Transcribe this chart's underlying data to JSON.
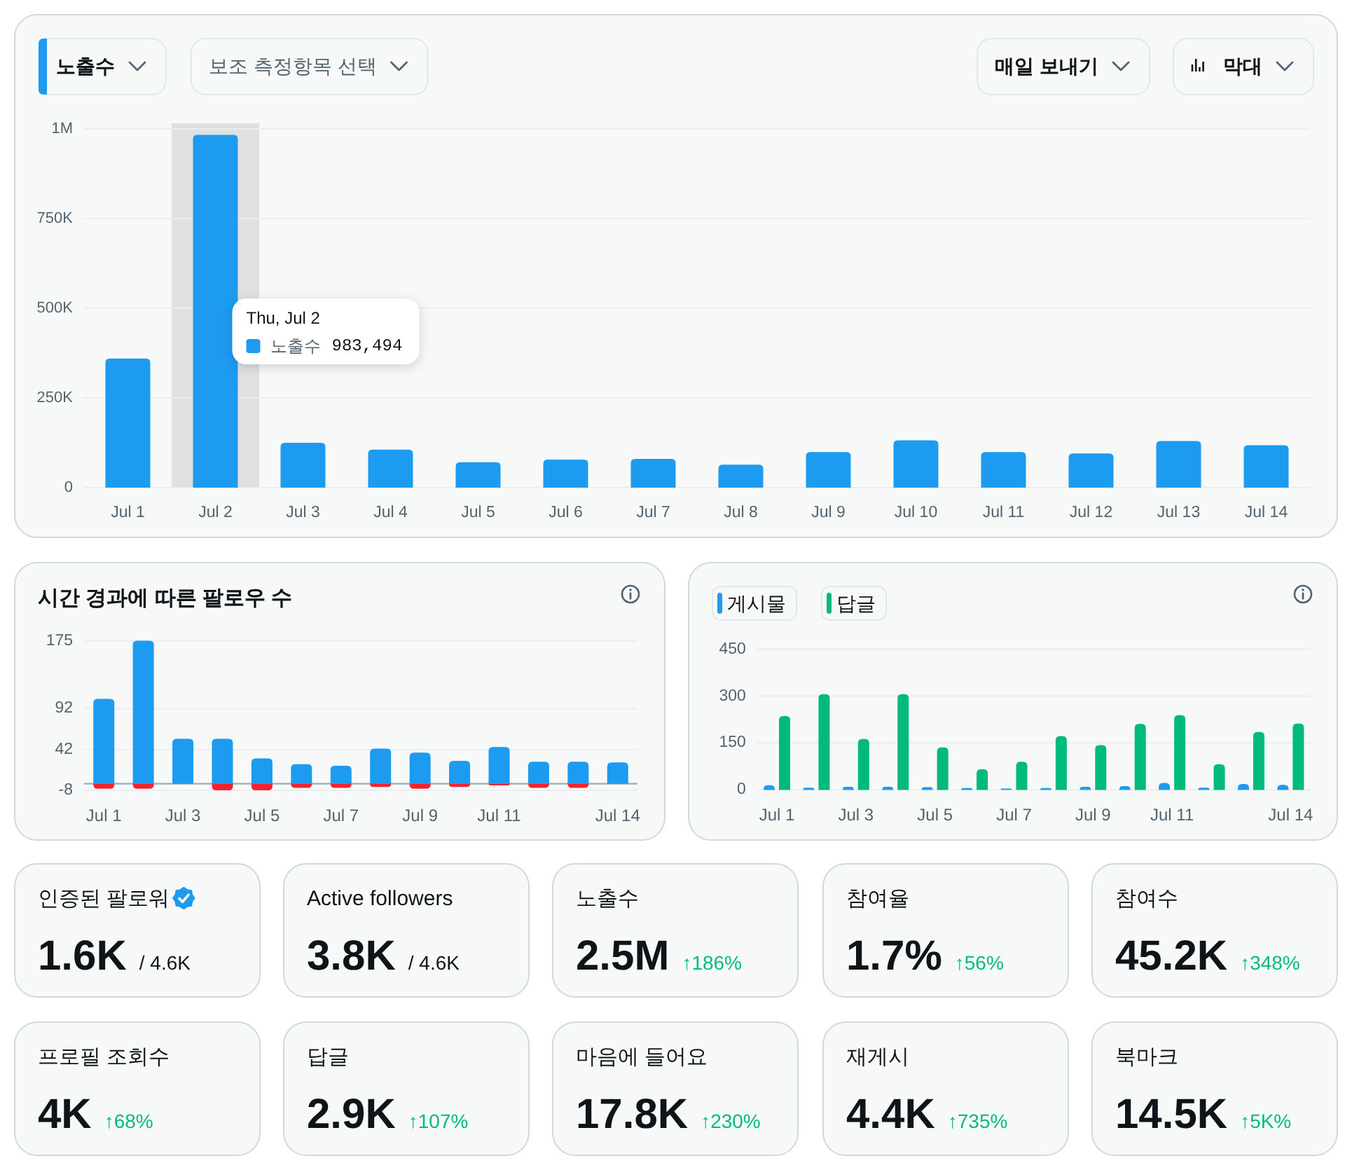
{
  "chart_data": [
    {
      "type": "bar",
      "title": "노출수",
      "categories": [
        "Jul 1",
        "Jul 2",
        "Jul 3",
        "Jul 4",
        "Jul 5",
        "Jul 6",
        "Jul 7",
        "Jul 8",
        "Jul 9",
        "Jul 10",
        "Jul 11",
        "Jul 12",
        "Jul 13",
        "Jul 14"
      ],
      "series": [
        {
          "name": "노출수",
          "color": "#1d9bf0",
          "values": [
            360000,
            983494,
            125000,
            106000,
            71000,
            78000,
            80000,
            64000,
            99000,
            132000,
            99000,
            95000,
            130000,
            118000
          ]
        }
      ],
      "ylim": [
        0,
        1000000
      ],
      "yticks": [
        0,
        {
          "value": 250000,
          "label": "250K"
        },
        {
          "value": 500000,
          "label": "500K"
        },
        {
          "value": 750000,
          "label": "750K"
        },
        {
          "value": 1000000,
          "label": "1M"
        }
      ],
      "grid": "y",
      "bands": [
        {
          "axis": "x",
          "from": "Jul 2",
          "to": "Jul 2",
          "color": "#dfe0e2"
        }
      ],
      "annotations": [
        "보조 측정항목 선택",
        "매일 보내기",
        "막대",
        "Thu, Jul 2",
        "983,494"
      ]
    },
    {
      "type": "bar",
      "title": "시간 경과에 따른 팔로우 수",
      "categories": [
        "Jul 1",
        null,
        "Jul 3",
        null,
        "Jul 5",
        null,
        "Jul 7",
        null,
        "Jul 9",
        null,
        "Jul 11",
        null,
        null,
        "Jul 14"
      ],
      "stacked": true,
      "series": [
        {
          "color": "#1d9bf0",
          "values": [
            104,
            175,
            55,
            55,
            31,
            24,
            22,
            43,
            38,
            28,
            45,
            27,
            27,
            26
          ]
        },
        {
          "color": "#f4212e",
          "values": [
            -6,
            -6,
            0,
            -8,
            -8,
            -5,
            -5,
            -4,
            -6,
            -4,
            -2,
            -5,
            -5,
            0
          ]
        }
      ],
      "ylim": [
        -8,
        175
      ],
      "yticks": [
        -8,
        42,
        92,
        175
      ],
      "grid": "y"
    },
    {
      "type": "bar",
      "categories": [
        "Jul 1",
        null,
        "Jul 3",
        null,
        "Jul 5",
        null,
        "Jul 7",
        null,
        "Jul 9",
        null,
        "Jul 11",
        null,
        null,
        "Jul 14"
      ],
      "series": [
        {
          "name": "게시물",
          "color": "#1d9bf0",
          "values": [
            15,
            7,
            10,
            10,
            9,
            6,
            4,
            6,
            10,
            12,
            22,
            7,
            19,
            16
          ]
        },
        {
          "name": "답글",
          "color": "#00ba7c",
          "values": [
            236,
            306,
            163,
            306,
            136,
            66,
            90,
            172,
            143,
            211,
            239,
            82,
            185,
            212
          ]
        }
      ],
      "ylim": [
        0,
        450
      ],
      "yticks": [
        0,
        150,
        300,
        450
      ],
      "grid": "y",
      "legend": "top left"
    },
    {
      "type": "other",
      "title": "인증된 팔로워",
      "annotations": [
        "1.6K",
        "/ 4.6K"
      ],
      "color": "#0f1419"
    },
    {
      "type": "other",
      "title": "Active followers",
      "annotations": [
        "3.8K",
        "/ 4.6K"
      ],
      "color": "#0f1419"
    },
    {
      "type": "other",
      "title": "노출수",
      "annotations": [
        "2.5M",
        "↑186%"
      ],
      "color": "#00ba7c"
    },
    {
      "type": "other",
      "title": "참여율",
      "annotations": [
        "1.7%",
        "↑56%"
      ],
      "color": "#00ba7c"
    },
    {
      "type": "other",
      "title": "참여수",
      "annotations": [
        "45.2K",
        "↑348%"
      ],
      "color": "#00ba7c"
    },
    {
      "type": "other",
      "title": "프로필 조회수",
      "annotations": [
        "4K",
        "↑68%"
      ],
      "color": "#00ba7c"
    },
    {
      "type": "other",
      "title": "답글",
      "annotations": [
        "2.9K",
        "↑107%"
      ],
      "color": "#00ba7c"
    },
    {
      "type": "other",
      "title": "마음에 들어요",
      "annotations": [
        "17.8K",
        "↑230%"
      ],
      "color": "#00ba7c"
    },
    {
      "type": "other",
      "title": "재게시",
      "annotations": [
        "4.4K",
        "↑735%"
      ],
      "color": "#00ba7c"
    },
    {
      "type": "other",
      "title": "북마크",
      "annotations": [
        "14.5K",
        "↑5K%"
      ],
      "color": "#00ba7c"
    }
  ]
}
